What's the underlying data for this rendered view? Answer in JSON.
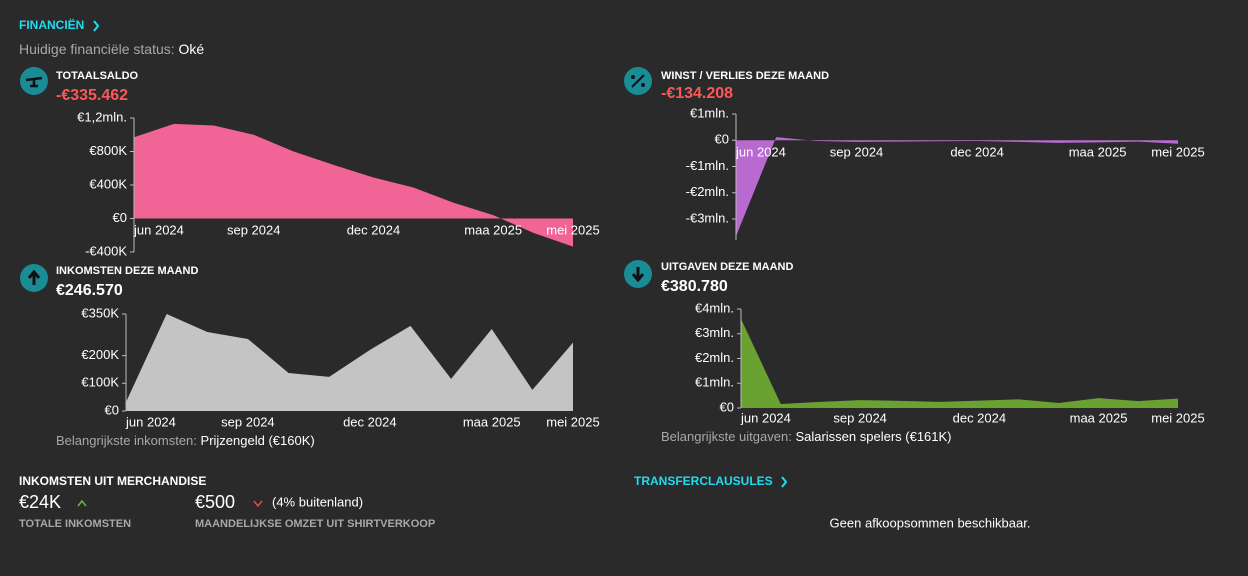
{
  "header": {
    "title": "FINANCIËN",
    "status_label": "Huidige financiële status:",
    "status_value": "Oké"
  },
  "chart_data": [
    {
      "type": "area",
      "title": "TOTAALSALDO",
      "headline": "-€335.462",
      "color": "#f06496",
      "categories": [
        "jun 2024",
        null,
        null,
        "sep 2024",
        null,
        null,
        "dec 2024",
        null,
        null,
        "maa 2025",
        null,
        "mei 2025"
      ],
      "values": [
        970000,
        1130000,
        1110000,
        1000000,
        800000,
        640000,
        490000,
        370000,
        190000,
        40000,
        -170000,
        -335462
      ],
      "ylim": [
        -400000,
        1200000
      ],
      "yticks": [
        {
          "value": 1200000,
          "label": "€1,2mln."
        },
        {
          "value": 800000,
          "label": "€800K"
        },
        {
          "value": 400000,
          "label": "€400K"
        },
        {
          "value": 0,
          "label": "€0"
        },
        {
          "value": -400000,
          "label": "-€400K"
        }
      ]
    },
    {
      "type": "area",
      "title": "WINST / VERLIES DEZE MAAND",
      "headline": "-€134.208",
      "color": "#b86ad0",
      "categories": [
        "jun 2024",
        null,
        null,
        "sep 2024",
        null,
        null,
        "dec 2024",
        null,
        null,
        "maa 2025",
        null,
        "mei 2025"
      ],
      "values": [
        -3650000,
        120000,
        -30000,
        -60000,
        -50000,
        -40000,
        -30000,
        -60000,
        -100000,
        -80000,
        -50000,
        -134208
      ],
      "ylim": [
        -3800000,
        1000000
      ],
      "yticks": [
        {
          "value": 1000000,
          "label": "€1mln."
        },
        {
          "value": 0,
          "label": "€0"
        },
        {
          "value": -1000000,
          "label": "-€1mln."
        },
        {
          "value": -2000000,
          "label": "-€2mln."
        },
        {
          "value": -3000000,
          "label": "-€3mln."
        }
      ]
    },
    {
      "type": "area",
      "title": "INKOMSTEN DEZE MAAND",
      "headline": "€246.570",
      "color": "#c4c4c4",
      "categories": [
        "jun 2024",
        null,
        null,
        "sep 2024",
        null,
        null,
        "dec 2024",
        null,
        null,
        "maa 2025",
        null,
        "mei 2025"
      ],
      "values": [
        32000,
        350000,
        285000,
        260000,
        137000,
        123000,
        220000,
        307000,
        116000,
        296000,
        76000,
        246570
      ],
      "ylim": [
        0,
        350000
      ],
      "yticks": [
        {
          "value": 350000,
          "label": "€350K"
        },
        {
          "value": 200000,
          "label": "€200K"
        },
        {
          "value": 100000,
          "label": "€100K"
        },
        {
          "value": 0,
          "label": "€0"
        }
      ],
      "note_label": "Belangrijkste inkomsten:",
      "note_value": "Prijzengeld (€160K)"
    },
    {
      "type": "area",
      "title": "UITGAVEN DEZE MAAND",
      "headline": "€380.780",
      "color": "#6aa232",
      "categories": [
        "jun 2024",
        null,
        null,
        "sep 2024",
        null,
        null,
        "dec 2024",
        null,
        null,
        "maa 2025",
        null,
        "mei 2025"
      ],
      "values": [
        3600000,
        160000,
        250000,
        320000,
        290000,
        250000,
        300000,
        350000,
        200000,
        400000,
        280000,
        380780
      ],
      "ylim": [
        0,
        4000000
      ],
      "yticks": [
        {
          "value": 4000000,
          "label": "€4mln."
        },
        {
          "value": 3000000,
          "label": "€3mln."
        },
        {
          "value": 2000000,
          "label": "€2mln."
        },
        {
          "value": 1000000,
          "label": "€1mln."
        },
        {
          "value": 0,
          "label": "€0"
        }
      ],
      "note_label": "Belangrijkste uitgaven:",
      "note_value": "Salarissen spelers (€161K)"
    }
  ],
  "merchandise": {
    "title": "INKOMSTEN UIT MERCHANDISE",
    "total": "€24K",
    "total_label": "TOTALE INKOMSTEN",
    "monthly": "€500",
    "monthly_note": "(4% buitenland)",
    "monthly_label": "MAANDELIJKSE OMZET UIT SHIRTVERKOOP"
  },
  "transfer": {
    "title": "TRANSFERCLAUSULES",
    "message": "Geen afkoopsommen beschikbaar."
  }
}
